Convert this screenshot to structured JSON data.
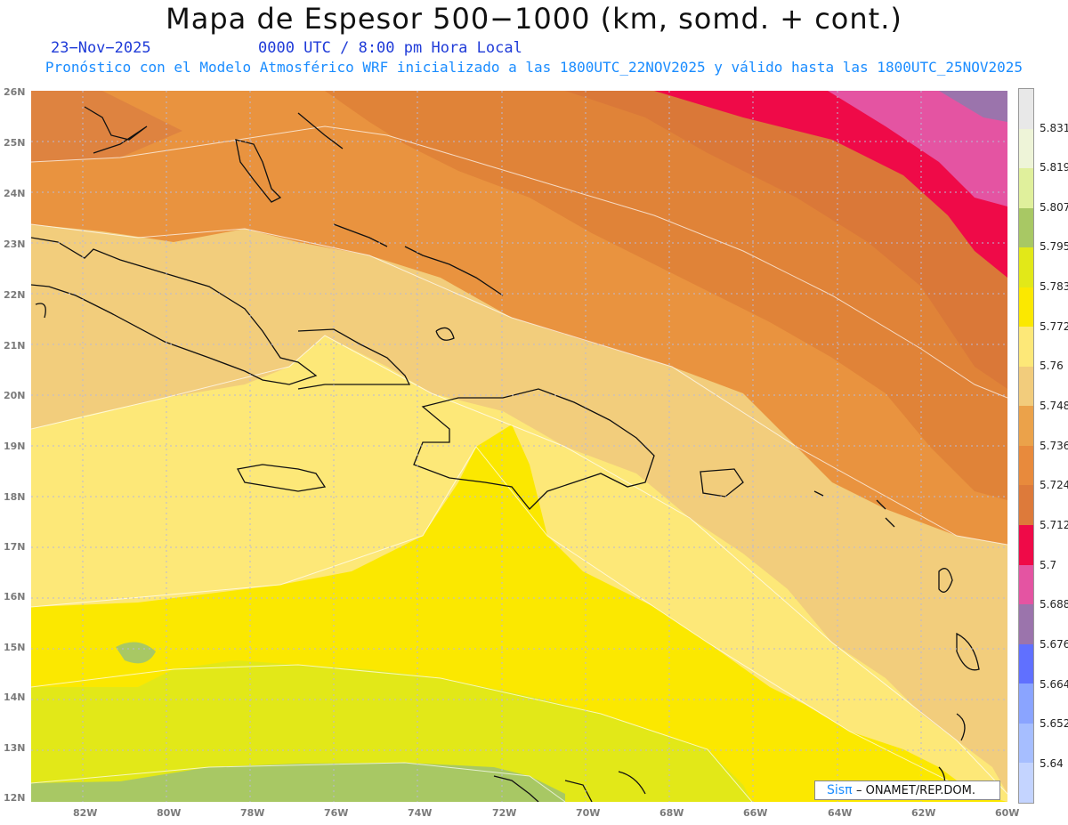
{
  "header": {
    "title": "Mapa de Espesor 500−1000 (km, somd. + cont.)",
    "date": "23−Nov−2025",
    "time": "0000 UTC / 8:00 pm Hora Local",
    "subtitle": "Pronóstico con el Modelo Atmosférico WRF inicializado a las 1800UTC_22NOV2025 y válido hasta las  1800UTC_25NOV2025"
  },
  "axes": {
    "lat_labels": [
      "26N",
      "25N",
      "24N",
      "23N",
      "22N",
      "21N",
      "20N",
      "19N",
      "18N",
      "17N",
      "16N",
      "15N",
      "14N",
      "13N",
      "12N"
    ],
    "lon_labels": [
      "82W",
      "80W",
      "78W",
      "76W",
      "74W",
      "72W",
      "70W",
      "68W",
      "66W",
      "64W",
      "62W",
      "60W"
    ]
  },
  "colorbar": {
    "labels": [
      "5.831",
      "5.819",
      "5.807",
      "5.795",
      "5.783",
      "5.772",
      "5.76",
      "5.748",
      "5.736",
      "5.724",
      "5.712",
      "5.7",
      "5.688",
      "5.676",
      "5.664",
      "5.652",
      "5.64"
    ],
    "colors": [
      "#e8e8e8",
      "#eef4d8",
      "#e0f09c",
      "#a8c864",
      "#e2e818",
      "#fbe800",
      "#fde878",
      "#f2cc7c",
      "#eba24a",
      "#e88a3c",
      "#dd7a3a",
      "#ef0a48",
      "#e454a2",
      "#9b74ac",
      "#6070ff",
      "#8aa4ff",
      "#a6beff",
      "#c4d4ff"
    ]
  },
  "credit": {
    "logo": "Sisπ",
    "org": "– ONAMET/REP.DOM."
  }
}
